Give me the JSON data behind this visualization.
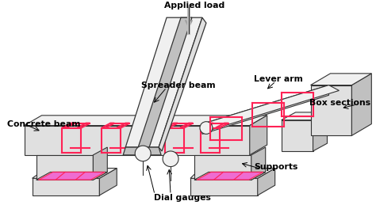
{
  "background_color": "#ffffff",
  "fig_width": 4.74,
  "fig_height": 2.78,
  "dpi": 100,
  "labels": {
    "applied_load": "Applied load",
    "spreader_beam": "Spreader beam",
    "lever_arm": "Lever arm",
    "box_sections": "Box sections",
    "concrete_beam": "Concrete beam",
    "supports": "Supports",
    "dial_gauges": "Dial gauges"
  },
  "colors": {
    "face_light": "#e0e0e0",
    "face_mid": "#c0c0c0",
    "face_dark": "#a0a0a0",
    "face_white": "#f0f0f0",
    "red_clamp": "#ff2255",
    "magenta_fill": "#ee55cc",
    "outline": "#555555",
    "outline_dark": "#333333",
    "load_arrow": "#888888",
    "white": "#ffffff"
  }
}
